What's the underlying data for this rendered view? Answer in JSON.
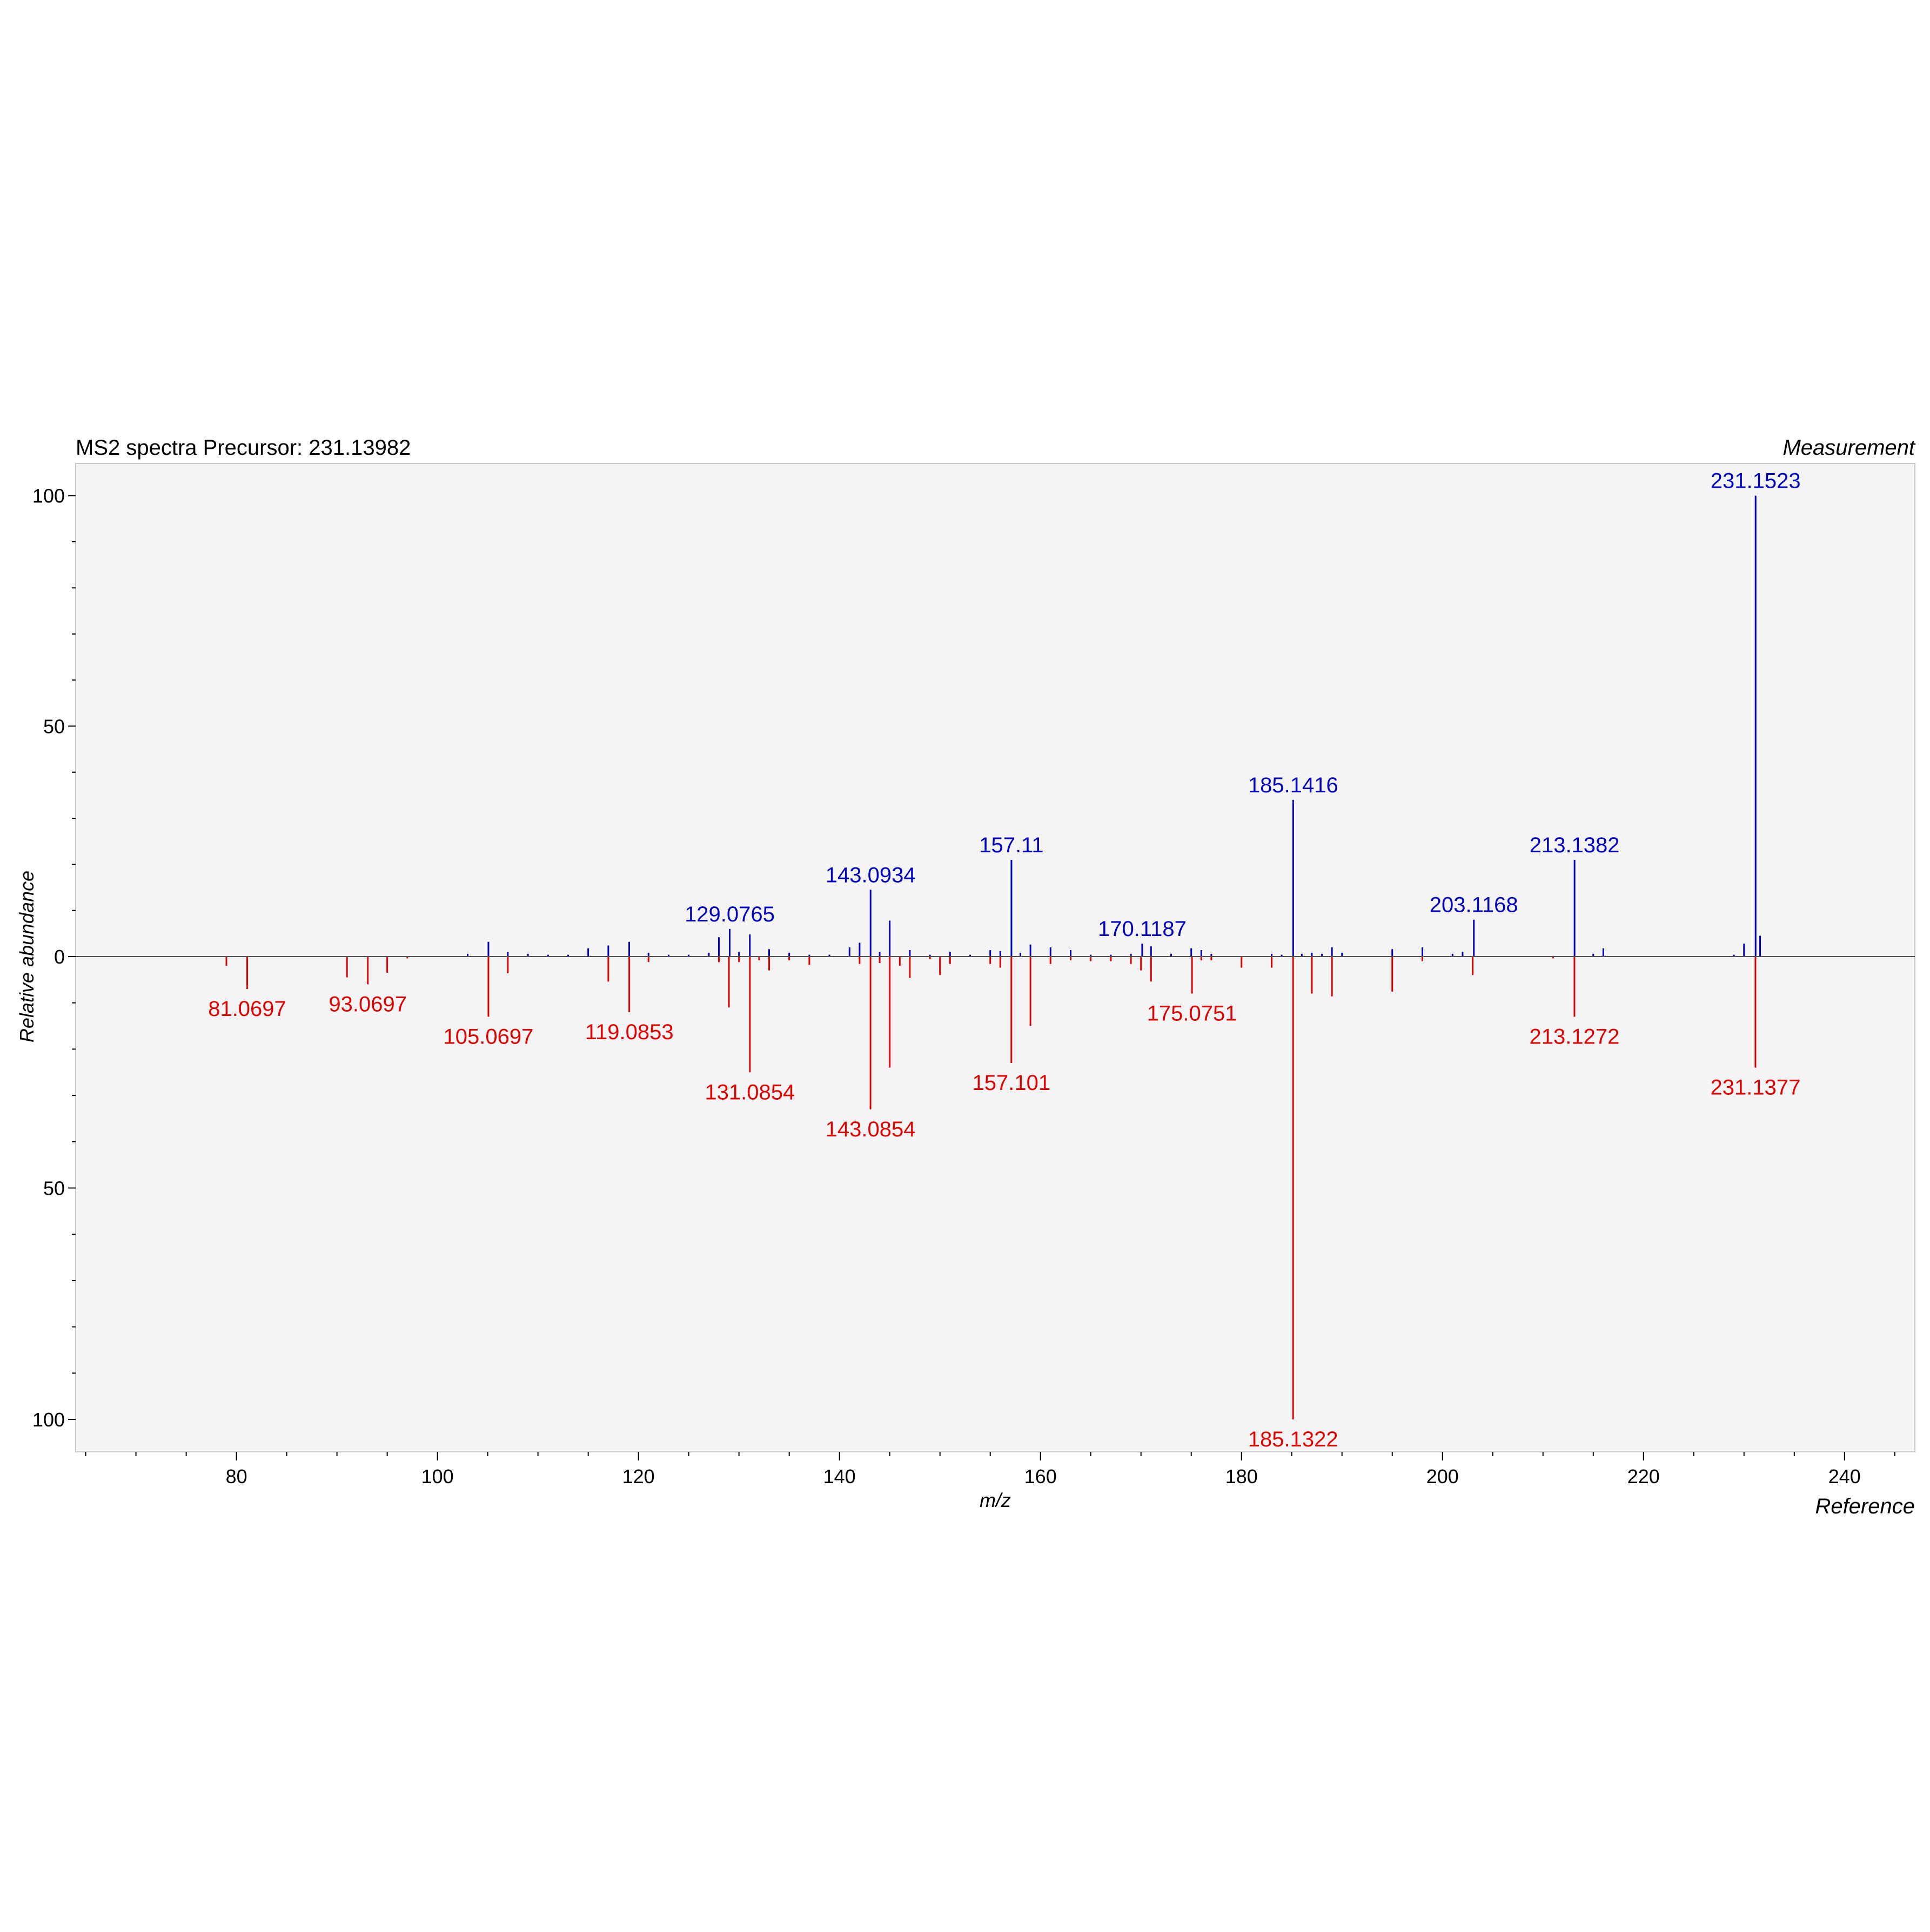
{
  "chart_data": {
    "type": "bar",
    "title": "MS2 spectra Precursor: 231.13982",
    "top_label": "Measurement",
    "bottom_label": "Reference",
    "xlabel": "m/z",
    "ylabel": "Relative abundance",
    "xlim": [
      64,
      247
    ],
    "ylim_top": [
      0,
      107
    ],
    "ylim_bottom": [
      0,
      107
    ],
    "x_ticks": [
      80,
      100,
      120,
      140,
      160,
      180,
      200,
      220,
      240
    ],
    "y_ticks_top": [
      0,
      50,
      100
    ],
    "y_ticks_bottom": [
      50,
      100
    ],
    "colors": {
      "measurement": "#0000bf",
      "reference": "#e00000",
      "background": "#f4f4f4",
      "zero_line": "#505050"
    },
    "series": [
      {
        "name": "Measurement",
        "peaks": [
          {
            "mz": 103.0,
            "intensity": 0.6
          },
          {
            "mz": 105.07,
            "intensity": 3.2
          },
          {
            "mz": 107.0,
            "intensity": 1.0
          },
          {
            "mz": 109.0,
            "intensity": 0.6
          },
          {
            "mz": 111.0,
            "intensity": 0.4
          },
          {
            "mz": 113.0,
            "intensity": 0.4
          },
          {
            "mz": 115.0,
            "intensity": 1.8
          },
          {
            "mz": 117.0,
            "intensity": 2.4
          },
          {
            "mz": 119.08,
            "intensity": 3.2
          },
          {
            "mz": 121.0,
            "intensity": 0.8
          },
          {
            "mz": 123.0,
            "intensity": 0.4
          },
          {
            "mz": 125.0,
            "intensity": 0.4
          },
          {
            "mz": 127.0,
            "intensity": 0.8
          },
          {
            "mz": 128.0,
            "intensity": 4.2
          },
          {
            "mz": 129.0765,
            "intensity": 6.0,
            "label": "129.0765"
          },
          {
            "mz": 130.0,
            "intensity": 1.0
          },
          {
            "mz": 131.08,
            "intensity": 4.8
          },
          {
            "mz": 133.0,
            "intensity": 1.6
          },
          {
            "mz": 135.0,
            "intensity": 0.8
          },
          {
            "mz": 137.0,
            "intensity": 0.4
          },
          {
            "mz": 139.0,
            "intensity": 0.4
          },
          {
            "mz": 141.0,
            "intensity": 2.0
          },
          {
            "mz": 142.0,
            "intensity": 3.0
          },
          {
            "mz": 143.0934,
            "intensity": 14.5,
            "label": "143.0934"
          },
          {
            "mz": 144.0,
            "intensity": 1.0
          },
          {
            "mz": 145.0,
            "intensity": 7.8
          },
          {
            "mz": 147.0,
            "intensity": 1.4
          },
          {
            "mz": 149.0,
            "intensity": 0.4
          },
          {
            "mz": 151.0,
            "intensity": 1.0
          },
          {
            "mz": 153.0,
            "intensity": 0.4
          },
          {
            "mz": 155.0,
            "intensity": 1.4
          },
          {
            "mz": 156.0,
            "intensity": 1.2
          },
          {
            "mz": 157.11,
            "intensity": 21.0,
            "label": "157.11"
          },
          {
            "mz": 158.0,
            "intensity": 0.8
          },
          {
            "mz": 159.0,
            "intensity": 2.6
          },
          {
            "mz": 161.0,
            "intensity": 2.0
          },
          {
            "mz": 163.0,
            "intensity": 1.4
          },
          {
            "mz": 165.0,
            "intensity": 0.4
          },
          {
            "mz": 167.0,
            "intensity": 0.4
          },
          {
            "mz": 169.0,
            "intensity": 0.6
          },
          {
            "mz": 170.1187,
            "intensity": 2.8,
            "label": "170.1187"
          },
          {
            "mz": 171.0,
            "intensity": 2.2
          },
          {
            "mz": 173.0,
            "intensity": 0.6
          },
          {
            "mz": 175.0,
            "intensity": 1.8
          },
          {
            "mz": 176.0,
            "intensity": 1.4
          },
          {
            "mz": 177.0,
            "intensity": 0.6
          },
          {
            "mz": 183.0,
            "intensity": 0.6
          },
          {
            "mz": 184.0,
            "intensity": 0.4
          },
          {
            "mz": 185.1416,
            "intensity": 34.0,
            "label": "185.1416"
          },
          {
            "mz": 186.0,
            "intensity": 0.6
          },
          {
            "mz": 187.0,
            "intensity": 0.8
          },
          {
            "mz": 188.0,
            "intensity": 0.6
          },
          {
            "mz": 189.0,
            "intensity": 2.0
          },
          {
            "mz": 190.0,
            "intensity": 0.8
          },
          {
            "mz": 195.0,
            "intensity": 1.6
          },
          {
            "mz": 198.0,
            "intensity": 2.0
          },
          {
            "mz": 201.0,
            "intensity": 0.6
          },
          {
            "mz": 202.0,
            "intensity": 1.0
          },
          {
            "mz": 203.1168,
            "intensity": 8.0,
            "label": "203.1168"
          },
          {
            "mz": 213.1382,
            "intensity": 21.0,
            "label": "213.1382"
          },
          {
            "mz": 215.0,
            "intensity": 0.6
          },
          {
            "mz": 216.0,
            "intensity": 1.8
          },
          {
            "mz": 229.0,
            "intensity": 0.4
          },
          {
            "mz": 230.0,
            "intensity": 2.8
          },
          {
            "mz": 231.1523,
            "intensity": 100.0,
            "label": "231.1523"
          },
          {
            "mz": 231.6,
            "intensity": 4.5
          }
        ]
      },
      {
        "name": "Reference",
        "peaks": [
          {
            "mz": 79.0,
            "intensity": 2.0
          },
          {
            "mz": 81.0697,
            "intensity": 7.0,
            "label": "81.0697"
          },
          {
            "mz": 91.0,
            "intensity": 4.5
          },
          {
            "mz": 93.0697,
            "intensity": 6.0,
            "label": "93.0697"
          },
          {
            "mz": 95.0,
            "intensity": 3.5
          },
          {
            "mz": 97.0,
            "intensity": 0.4
          },
          {
            "mz": 105.0697,
            "intensity": 13.0,
            "label": "105.0697"
          },
          {
            "mz": 107.0,
            "intensity": 3.6
          },
          {
            "mz": 117.0,
            "intensity": 5.4
          },
          {
            "mz": 119.0853,
            "intensity": 12.0,
            "label": "119.0853"
          },
          {
            "mz": 121.0,
            "intensity": 1.2
          },
          {
            "mz": 128.0,
            "intensity": 1.2
          },
          {
            "mz": 129.0,
            "intensity": 11.0
          },
          {
            "mz": 130.0,
            "intensity": 1.2
          },
          {
            "mz": 131.0854,
            "intensity": 25.0,
            "label": "131.0854"
          },
          {
            "mz": 132.0,
            "intensity": 0.8
          },
          {
            "mz": 133.0,
            "intensity": 3.0
          },
          {
            "mz": 135.0,
            "intensity": 0.8
          },
          {
            "mz": 137.0,
            "intensity": 1.8
          },
          {
            "mz": 142.0,
            "intensity": 1.6
          },
          {
            "mz": 143.0854,
            "intensity": 33.0,
            "label": "143.0854"
          },
          {
            "mz": 144.0,
            "intensity": 1.4
          },
          {
            "mz": 145.0,
            "intensity": 24.0
          },
          {
            "mz": 146.0,
            "intensity": 2.0
          },
          {
            "mz": 147.0,
            "intensity": 4.6
          },
          {
            "mz": 149.0,
            "intensity": 0.6
          },
          {
            "mz": 150.0,
            "intensity": 4.0
          },
          {
            "mz": 151.0,
            "intensity": 1.6
          },
          {
            "mz": 155.0,
            "intensity": 1.6
          },
          {
            "mz": 156.0,
            "intensity": 2.4
          },
          {
            "mz": 157.101,
            "intensity": 23.0,
            "label": "157.101"
          },
          {
            "mz": 159.0,
            "intensity": 15.0
          },
          {
            "mz": 161.0,
            "intensity": 1.6
          },
          {
            "mz": 163.0,
            "intensity": 0.8
          },
          {
            "mz": 165.0,
            "intensity": 1.0
          },
          {
            "mz": 167.0,
            "intensity": 1.0
          },
          {
            "mz": 169.0,
            "intensity": 1.6
          },
          {
            "mz": 170.0,
            "intensity": 3.0
          },
          {
            "mz": 171.0,
            "intensity": 5.4
          },
          {
            "mz": 175.0751,
            "intensity": 8.0,
            "label": "175.0751"
          },
          {
            "mz": 176.0,
            "intensity": 0.8
          },
          {
            "mz": 177.0,
            "intensity": 0.8
          },
          {
            "mz": 180.0,
            "intensity": 2.4
          },
          {
            "mz": 183.0,
            "intensity": 2.4
          },
          {
            "mz": 185.1322,
            "intensity": 100.0,
            "label": "185.1322"
          },
          {
            "mz": 187.0,
            "intensity": 8.0
          },
          {
            "mz": 189.0,
            "intensity": 8.6
          },
          {
            "mz": 195.0,
            "intensity": 7.6
          },
          {
            "mz": 198.0,
            "intensity": 1.0
          },
          {
            "mz": 203.0,
            "intensity": 4.0
          },
          {
            "mz": 211.0,
            "intensity": 0.4
          },
          {
            "mz": 213.1272,
            "intensity": 13.0,
            "label": "213.1272"
          },
          {
            "mz": 231.1377,
            "intensity": 24.0,
            "label": "231.1377"
          }
        ]
      }
    ]
  }
}
